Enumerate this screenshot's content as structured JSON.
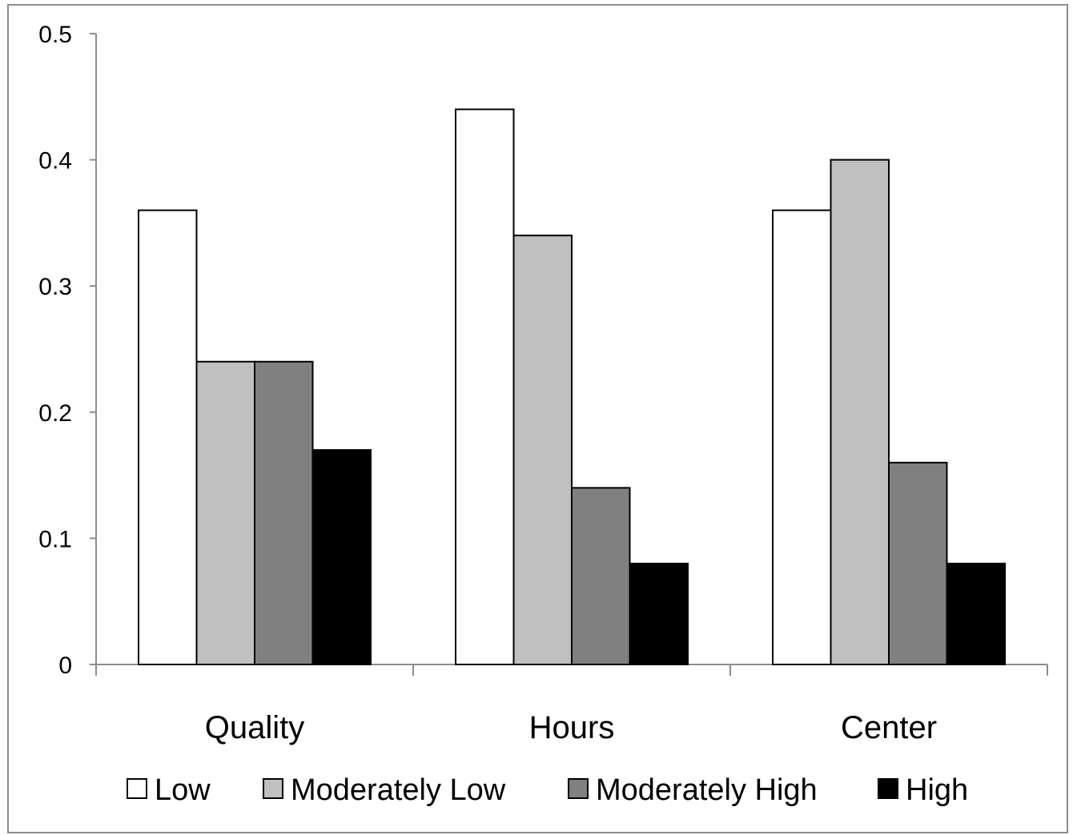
{
  "chart_data": {
    "type": "bar",
    "categories": [
      "Quality",
      "Hours",
      "Center"
    ],
    "series": [
      {
        "name": "Low",
        "values": [
          0.36,
          0.44,
          0.36
        ],
        "color": "#ffffff"
      },
      {
        "name": "Moderately Low",
        "values": [
          0.24,
          0.34,
          0.4
        ],
        "color": "#c0c0c0"
      },
      {
        "name": "Moderately High",
        "values": [
          0.24,
          0.14,
          0.16
        ],
        "color": "#808080"
      },
      {
        "name": "High",
        "values": [
          0.17,
          0.08,
          0.08
        ],
        "color": "#000000"
      }
    ],
    "ylim": [
      0,
      0.5
    ],
    "yticks": [
      "0",
      "0.1",
      "0.2",
      "0.3",
      "0.4",
      "0.5"
    ],
    "grid": false,
    "legend_position": "bottom"
  }
}
